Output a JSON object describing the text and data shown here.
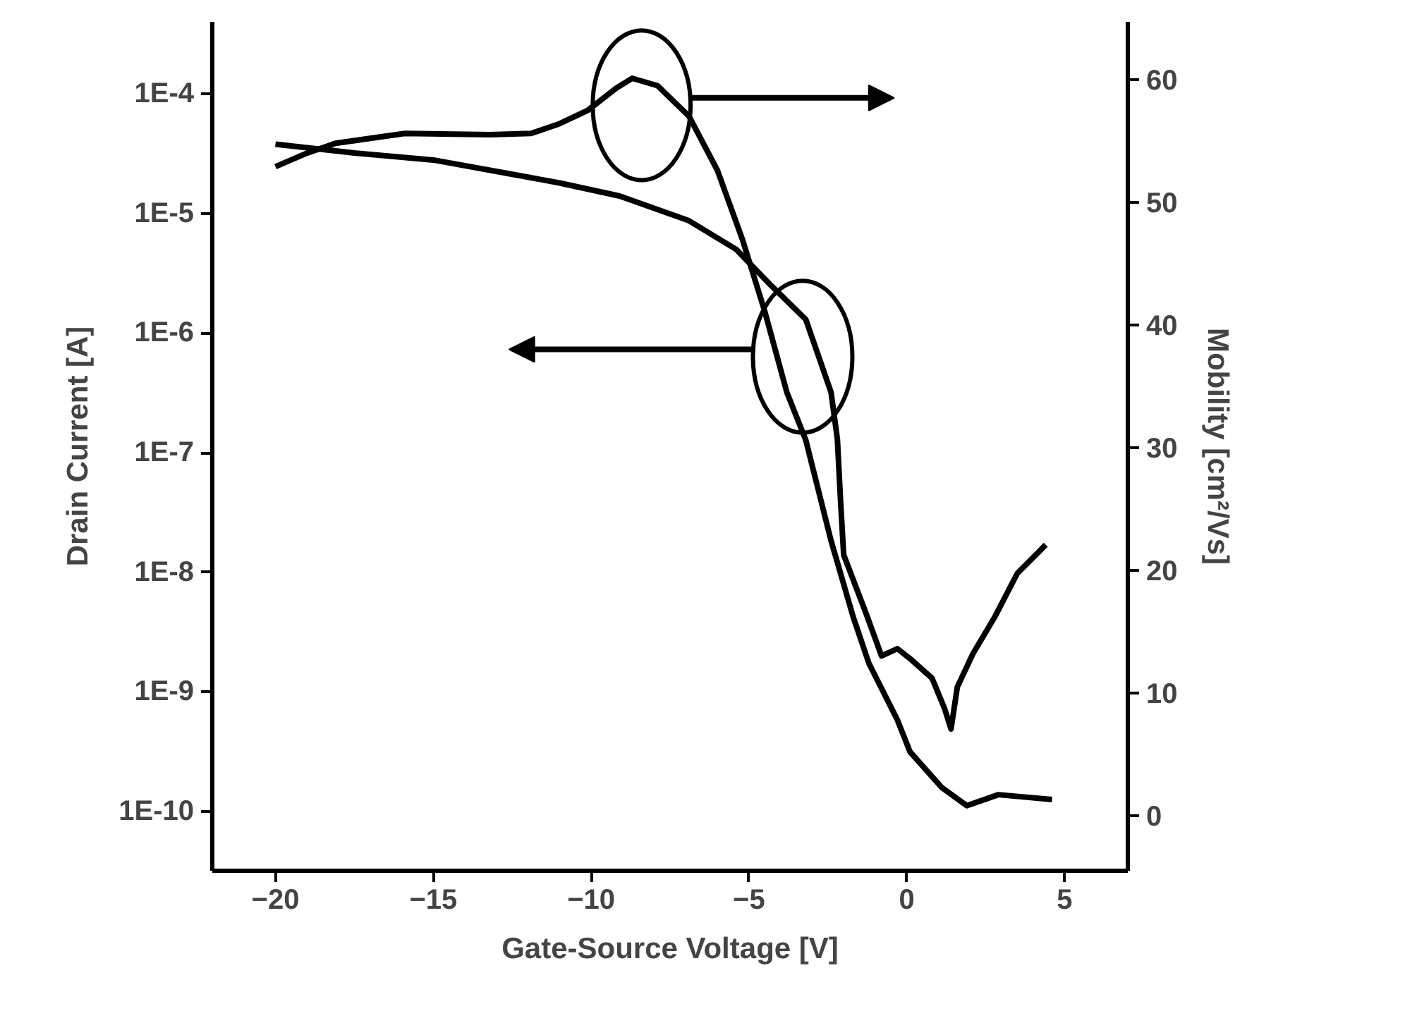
{
  "chart_data": {
    "type": "line",
    "xlabel": "Gate-Source Voltage [V]",
    "ylabel": "Drain Current [A]",
    "y2label": "Mobility [cm²/Vs]",
    "log": "y",
    "grid": false,
    "marker": "none",
    "line_style": "solid",
    "xlim": [
      -22,
      7
    ],
    "xticks": [
      -20,
      -15,
      -10,
      -5,
      0,
      5
    ],
    "ylim": [
      3.2e-11,
      0.0004
    ],
    "yticks": [
      {
        "value": 0.0001,
        "label": "1E-4"
      },
      {
        "value": 1e-05,
        "label": "1E-5"
      },
      {
        "value": 1e-06,
        "label": "1E-6"
      },
      {
        "value": 1e-07,
        "label": "1E-7"
      },
      {
        "value": 1e-08,
        "label": "1E-8"
      },
      {
        "value": 1e-09,
        "label": "1E-9"
      },
      {
        "value": 1e-10,
        "label": "1E-10"
      }
    ],
    "y2lim": [
      -4.5,
      64.7
    ],
    "y2ticks": [
      0,
      10,
      20,
      30,
      40,
      50,
      60
    ],
    "series": [
      {
        "color": "#000000",
        "x": [
          -20.0,
          -17.5,
          -15.0,
          -12.8,
          -11.0,
          -9.1,
          -6.9,
          -5.4,
          -4.3,
          -3.2,
          -2.4,
          -2.2,
          -2.1,
          -2.0,
          -1.3,
          -0.8,
          -0.3,
          0.1,
          0.8,
          1.2,
          1.4,
          1.6,
          2.1,
          2.8,
          3.5,
          4.2,
          4.4
        ],
        "values": [
          3.8e-05,
          3.2e-05,
          2.8e-05,
          2.2e-05,
          1.8e-05,
          1.4e-05,
          8.7e-06,
          5e-06,
          2.5e-06,
          1.3e-06,
          3.2e-07,
          1.3e-07,
          4e-08,
          1.4e-08,
          4.6e-09,
          2e-09,
          2.3e-09,
          1.9e-09,
          1.3e-09,
          7.2e-10,
          4.9e-10,
          1.1e-09,
          2.1e-09,
          4.3e-09,
          9.8e-09,
          1.5e-08,
          1.7e-08
        ]
      },
      {
        "color": "#000000",
        "axis": "y2",
        "x": [
          -20.0,
          -19.0,
          -18.1,
          -15.9,
          -13.2,
          -11.9,
          -11.0,
          -10.1,
          -9.2,
          -8.7,
          -7.9,
          -6.9,
          -6.0,
          -5.2,
          -4.5,
          -3.8,
          -3.2,
          -2.4,
          -1.7,
          -1.2,
          -0.3,
          0.1,
          1.1,
          1.9,
          2.9,
          4.6
        ],
        "values": [
          52.9,
          54.0,
          54.8,
          55.6,
          55.5,
          55.6,
          56.4,
          57.5,
          59.3,
          60.1,
          59.5,
          57.0,
          52.6,
          46.9,
          41.1,
          34.5,
          30.6,
          22.4,
          16.2,
          12.4,
          7.8,
          5.2,
          2.3,
          0.8,
          1.7,
          1.3
        ]
      }
    ]
  }
}
